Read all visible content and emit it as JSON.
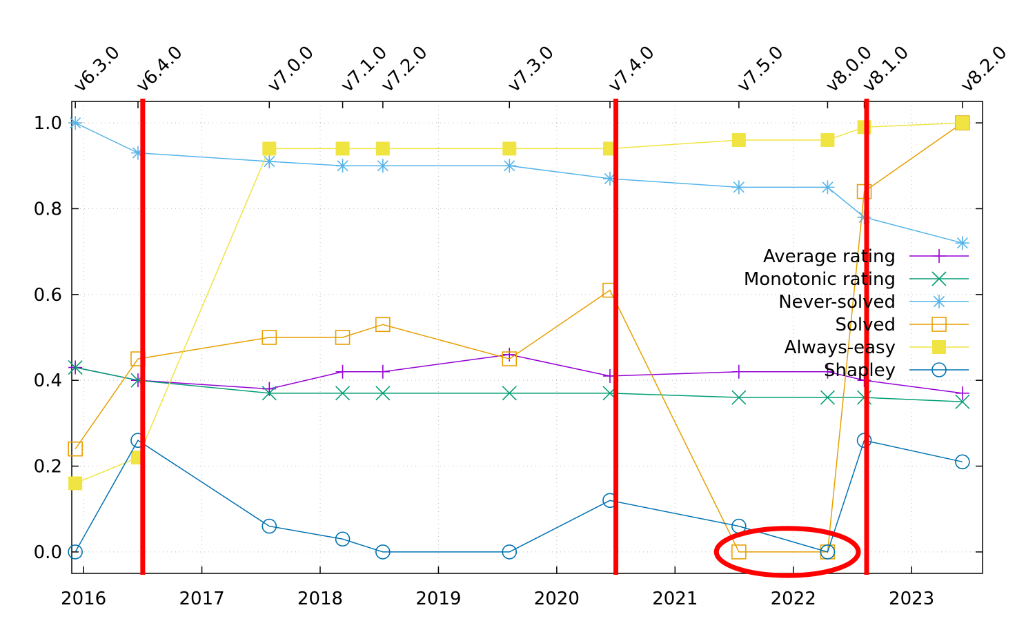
{
  "chart_data": {
    "type": "line",
    "x_axis": {
      "min": 2015.9,
      "max": 2023.6,
      "tick_labels": [
        "2016",
        "2017",
        "2018",
        "2019",
        "2020",
        "2021",
        "2022",
        "2023"
      ],
      "tick_values": [
        2016,
        2017,
        2018,
        2019,
        2020,
        2021,
        2022,
        2023
      ]
    },
    "y_axis": {
      "min": -0.05,
      "max": 1.05,
      "tick_labels": [
        "0.0",
        "0.2",
        "0.4",
        "0.6",
        "0.8",
        "1.0"
      ],
      "tick_values": [
        0.0,
        0.2,
        0.4,
        0.6,
        0.8,
        1.0
      ]
    },
    "grid": true,
    "legend_position": "right",
    "releases": [
      {
        "label": "v6.3.0",
        "x": 2015.93
      },
      {
        "label": "v6.4.0",
        "x": 2016.46
      },
      {
        "label": "v7.0.0",
        "x": 2017.57
      },
      {
        "label": "v7.1.0",
        "x": 2018.19
      },
      {
        "label": "v7.2.0",
        "x": 2018.53
      },
      {
        "label": "v7.3.0",
        "x": 2019.6
      },
      {
        "label": "v7.4.0",
        "x": 2020.45
      },
      {
        "label": "v7.5.0",
        "x": 2021.54
      },
      {
        "label": "v8.0.0",
        "x": 2022.29
      },
      {
        "label": "v8.1.0",
        "x": 2022.6
      },
      {
        "label": "v8.2.0",
        "x": 2023.43
      }
    ],
    "highlight_lines_x": [
      2016.5,
      2020.5,
      2022.62
    ],
    "highlight_ellipse": {
      "cx": 2021.95,
      "cy": 0.0,
      "rx": 0.6,
      "ry": 0.055
    },
    "series": [
      {
        "name": "Average rating",
        "color": "#9400d3",
        "marker": "plus",
        "values": [
          0.43,
          0.4,
          0.38,
          0.42,
          0.42,
          0.46,
          0.41,
          0.42,
          0.42,
          0.4,
          0.37
        ]
      },
      {
        "name": "Monotonic rating",
        "color": "#009e73",
        "marker": "cross",
        "values": [
          0.43,
          0.4,
          0.37,
          0.37,
          0.37,
          0.37,
          0.37,
          0.36,
          0.36,
          0.36,
          0.35
        ]
      },
      {
        "name": "Never-solved",
        "color": "#56b4e9",
        "marker": "star",
        "values": [
          1.0,
          0.93,
          0.91,
          0.9,
          0.9,
          0.9,
          0.87,
          0.85,
          0.85,
          0.78,
          0.72
        ]
      },
      {
        "name": "Solved",
        "color": "#e69f00",
        "marker": "open-square",
        "values": [
          0.24,
          0.45,
          0.5,
          0.5,
          0.53,
          0.45,
          0.61,
          0.0,
          0.0,
          0.84,
          1.0
        ]
      },
      {
        "name": "Always-easy",
        "color": "#f0e442",
        "marker": "filled-square",
        "values": [
          0.16,
          0.22,
          0.94,
          0.94,
          0.94,
          0.94,
          0.94,
          0.96,
          0.96,
          0.99,
          1.0
        ]
      },
      {
        "name": "Shapley",
        "color": "#0072b2",
        "marker": "open-circle",
        "values": [
          0.0,
          0.26,
          0.06,
          0.03,
          0.0,
          0.0,
          0.12,
          0.06,
          0.0,
          0.26,
          0.21
        ]
      }
    ]
  }
}
